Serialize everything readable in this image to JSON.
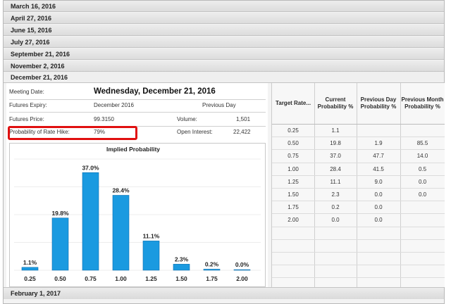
{
  "meetings": [
    "March 16, 2016",
    "April 27, 2016",
    "June 15, 2016",
    "July 27, 2016",
    "September 21, 2016",
    "November 2, 2016",
    "December 21, 2016"
  ],
  "next_meeting": "February 1, 2017",
  "details": {
    "meeting_date_label": "Meeting Date:",
    "meeting_date_value": "Wednesday, December 21, 2016",
    "futures_expiry_label": "Futures Expiry:",
    "futures_expiry_value": "December 2016",
    "previous_day_label": "Previous Day",
    "futures_price_label": "Futures Price:",
    "futures_price_value": "99.3150",
    "volume_label": "Volume:",
    "volume_value": "1,501",
    "prob_hike_label": "Probability of Rate Hike:",
    "prob_hike_value": "79%",
    "open_interest_label": "Open Interest:",
    "open_interest_value": "22,422"
  },
  "table": {
    "headers": [
      "Target Rate...",
      "Current Probability %",
      "Previous Day Probability %",
      "Previous Month Probability %"
    ],
    "rows": [
      [
        "0.25",
        "1.1",
        "",
        ""
      ],
      [
        "0.50",
        "19.8",
        "1.9",
        "85.5"
      ],
      [
        "0.75",
        "37.0",
        "47.7",
        "14.0"
      ],
      [
        "1.00",
        "28.4",
        "41.5",
        "0.5"
      ],
      [
        "1.25",
        "11.1",
        "9.0",
        "0.0"
      ],
      [
        "1.50",
        "2.3",
        "0.0",
        "0.0"
      ],
      [
        "1.75",
        "0.2",
        "0.0",
        ""
      ],
      [
        "2.00",
        "0.0",
        "0.0",
        ""
      ]
    ]
  },
  "chart_data": {
    "type": "bar",
    "title": "Implied Probability",
    "categories": [
      "0.25",
      "0.50",
      "0.75",
      "1.00",
      "1.25",
      "1.50",
      "1.75",
      "2.00"
    ],
    "values": [
      1.1,
      19.8,
      37.0,
      28.4,
      11.1,
      2.3,
      0.2,
      0.0
    ],
    "value_labels": [
      "1.1%",
      "19.8%",
      "37.0%",
      "28.4%",
      "11.1%",
      "2.3%",
      "0.2%",
      "0.0%"
    ],
    "bar_color": "#1a9ae0",
    "ylim": [
      0,
      40
    ],
    "grid": true
  }
}
